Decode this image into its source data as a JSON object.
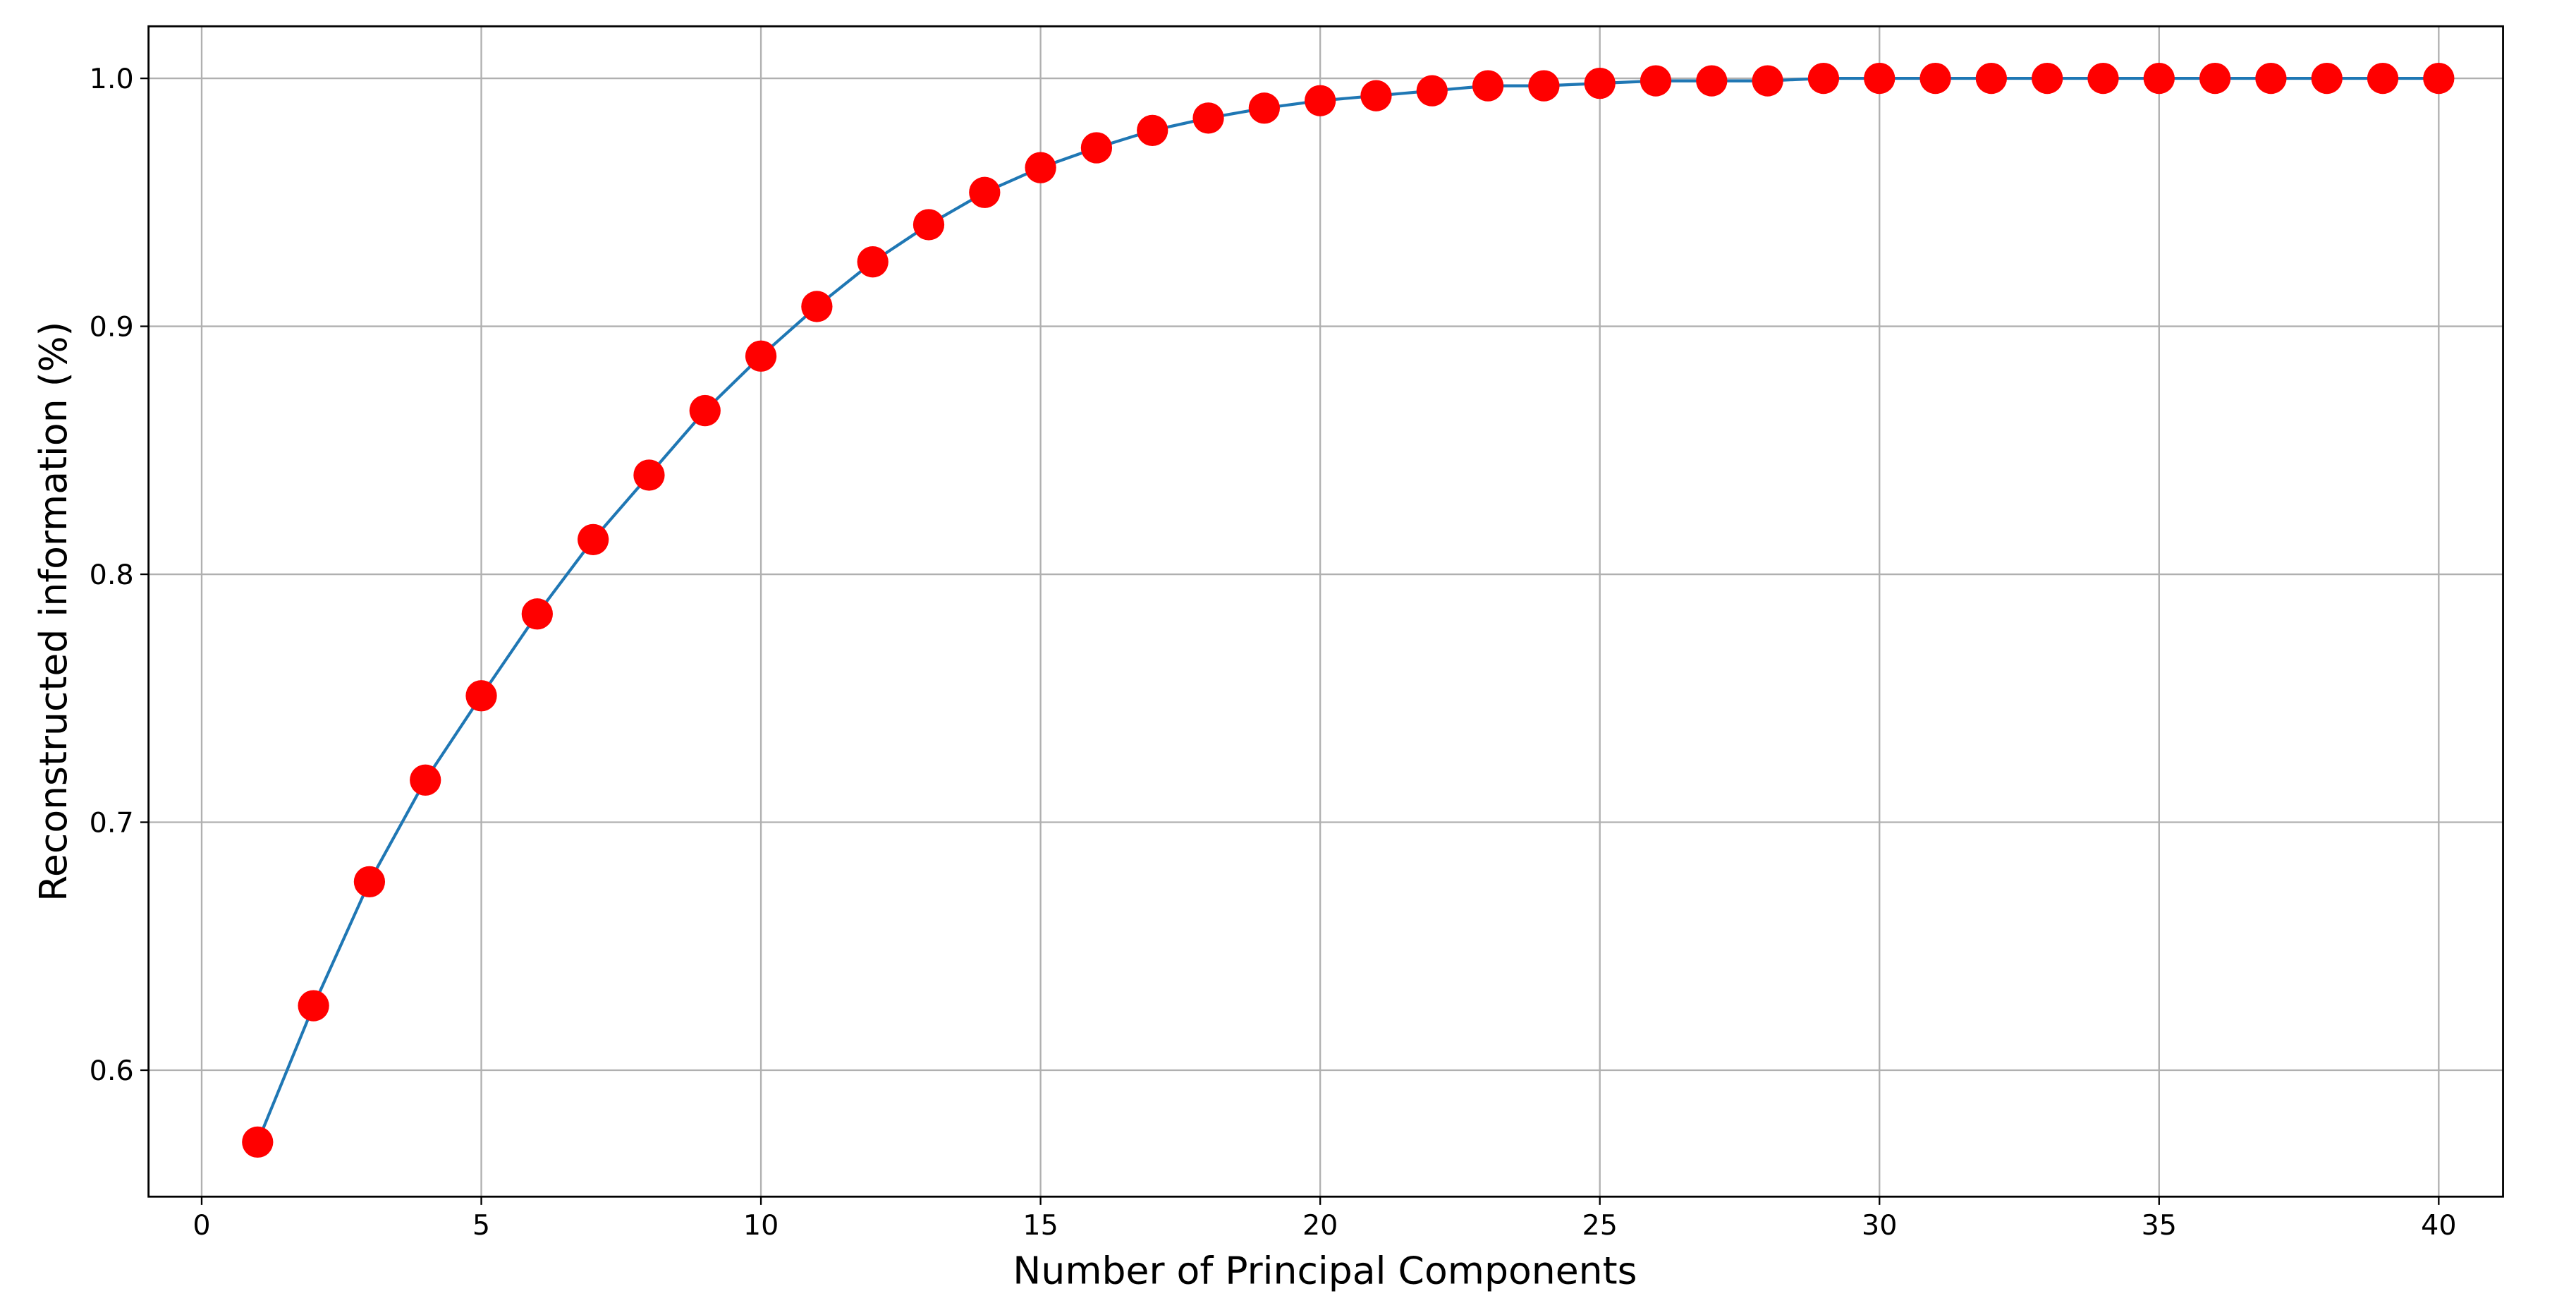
{
  "chart_data": {
    "type": "line",
    "xlabel": "Number of Principal Components",
    "ylabel": "Reconstructed information (%)",
    "x": [
      1,
      2,
      3,
      4,
      5,
      6,
      7,
      8,
      9,
      10,
      11,
      12,
      13,
      14,
      15,
      16,
      17,
      18,
      19,
      20,
      21,
      22,
      23,
      24,
      25,
      26,
      27,
      28,
      29,
      30,
      31,
      32,
      33,
      34,
      35,
      36,
      37,
      38,
      39,
      40
    ],
    "series": [
      {
        "color": "#1f77b4",
        "marker_color": "#ff0000",
        "values": [
          0.571,
          0.626,
          0.676,
          0.717,
          0.751,
          0.784,
          0.814,
          0.84,
          0.866,
          0.888,
          0.908,
          0.926,
          0.941,
          0.954,
          0.964,
          0.972,
          0.979,
          0.984,
          0.988,
          0.991,
          0.993,
          0.995,
          0.997,
          0.997,
          0.998,
          0.999,
          0.999,
          0.999,
          1.0,
          1.0,
          1.0,
          1.0,
          1.0,
          1.0,
          1.0,
          1.0,
          1.0,
          1.0,
          1.0,
          1.0
        ]
      }
    ],
    "xlim": [
      -0.95,
      41.15
    ],
    "ylim": [
      0.549,
      1.021
    ],
    "xticks": [
      0,
      5,
      10,
      15,
      20,
      25,
      30,
      35,
      40
    ],
    "yticks": [
      0.6,
      0.7,
      0.8,
      0.9,
      {
        "value": 1.0,
        "label": "1.0"
      }
    ],
    "grid": true
  }
}
